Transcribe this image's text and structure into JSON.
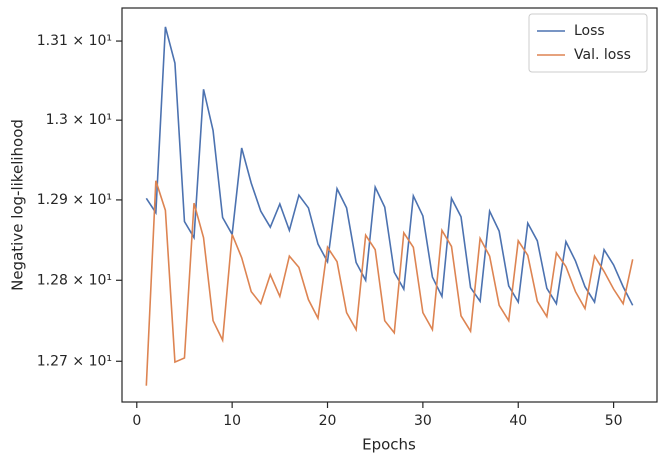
{
  "chart_data": {
    "type": "line",
    "x_label": "Epochs",
    "y_label": "Negative log-likelihood",
    "x": [
      1,
      2,
      3,
      4,
      5,
      6,
      7,
      8,
      9,
      10,
      11,
      12,
      13,
      14,
      15,
      16,
      17,
      18,
      19,
      20,
      21,
      22,
      23,
      24,
      25,
      26,
      27,
      28,
      29,
      30,
      31,
      32,
      33,
      34,
      35,
      36,
      37,
      38,
      39,
      40,
      41,
      42,
      43,
      44,
      45,
      46,
      47,
      48,
      49,
      50,
      51,
      52
    ],
    "series": [
      {
        "name": "Loss",
        "color": "#4c72b0",
        "values": [
          12.902,
          12.884,
          13.118,
          13.072,
          12.873,
          12.853,
          13.039,
          12.987,
          12.878,
          12.857,
          12.965,
          12.921,
          12.886,
          12.866,
          12.895,
          12.862,
          12.906,
          12.89,
          12.845,
          12.823,
          12.914,
          12.89,
          12.822,
          12.8,
          12.916,
          12.891,
          12.81,
          12.789,
          12.905,
          12.88,
          12.804,
          12.78,
          12.902,
          12.879,
          12.791,
          12.774,
          12.886,
          12.861,
          12.793,
          12.773,
          12.871,
          12.849,
          12.79,
          12.771,
          12.848,
          12.824,
          12.792,
          12.773,
          12.838,
          12.819,
          12.792,
          12.769
        ]
      },
      {
        "name": "Val. loss",
        "color": "#dd8452",
        "values": [
          12.67,
          12.924,
          12.887,
          12.699,
          12.704,
          12.896,
          12.853,
          12.75,
          12.726,
          12.857,
          12.828,
          12.786,
          12.771,
          12.807,
          12.78,
          12.83,
          12.816,
          12.776,
          12.753,
          12.841,
          12.823,
          12.76,
          12.739,
          12.856,
          12.838,
          12.75,
          12.735,
          12.859,
          12.841,
          12.76,
          12.739,
          12.862,
          12.842,
          12.756,
          12.737,
          12.852,
          12.83,
          12.769,
          12.75,
          12.849,
          12.831,
          12.774,
          12.755,
          12.834,
          12.817,
          12.786,
          12.765,
          12.83,
          12.811,
          12.789,
          12.771,
          12.826
        ]
      }
    ],
    "xlim": [
      -1.55,
      54.55
    ],
    "xticks": [
      0,
      10,
      20,
      30,
      40,
      50
    ],
    "ylim": [
      12.65,
      13.142
    ],
    "y_log": true,
    "yticks": [
      {
        "value": 12.7,
        "label": "1.27 × 10¹"
      },
      {
        "value": 12.8,
        "label": "1.28 × 10¹"
      },
      {
        "value": 12.9,
        "label": "1.29 × 10¹"
      },
      {
        "value": 13.0,
        "label": "1.3 × 10¹"
      },
      {
        "value": 13.1,
        "label": "1.31 × 10¹"
      }
    ],
    "grid": false,
    "legend": "upper right"
  }
}
